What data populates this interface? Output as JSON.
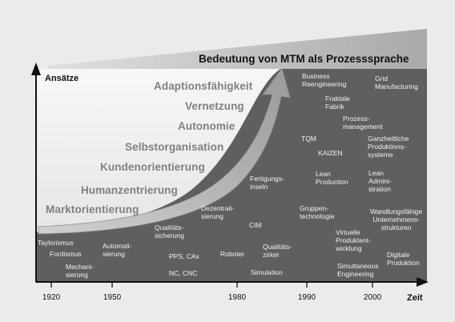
{
  "banner": {
    "title": "Bedeutung von MTM als Prozesssprache"
  },
  "axes": {
    "y_title": "Ansätze",
    "x_title": "Zeit",
    "ticks": [
      "1920",
      "1950",
      "1980",
      "1990",
      "2000"
    ]
  },
  "stages": [
    "Marktorientierung",
    "Humanzentrierung",
    "Kundenorientierung",
    "Selbstorganisation",
    "Autonomie",
    "Vernetzung",
    "Adaptionsfähigkeit"
  ],
  "concepts": {
    "taylorismus": "Taylorismus",
    "fordismus": "Fordismus",
    "mechanisierung": "Mechani-\nsierung",
    "automatisierung": "Automati-\nsierung",
    "qualitaetssicherung": "Qualitäts-\nsicherung",
    "pps_cax": "PPS, CAx",
    "nc_cnc": "NC, CNC",
    "dezentralisierung": "Dezentrali-\nsierung",
    "roboter": "Roboter",
    "fertigungsinseln": "Fertigungs-\ninseln",
    "cim": "CIM",
    "qualitaetszirkel": "Qualitäts-\nzirkel",
    "simulation": "Simulation",
    "business_reengineering": "Business\nReengineering",
    "fraktale_fabrik": "Fraktale\nFabrik",
    "prozessmanagement": "Prozess-\nmanagement",
    "tqm": "TQM",
    "kaizen": "KAIZEN",
    "lean_production": "Lean\nProduction",
    "gruppentechnologie": "Gruppen-\ntechnologie",
    "virtuelle_produktentwicklung": "Virtuelle\nProduktent-\nwicklung",
    "simultaneous_engineering": "Simultaneous\nEngineering",
    "grid_manufacturing": "Grid\nManufacturing",
    "ganzheitliche_produktionssysteme": "Ganzheitliche\nProduktions-\nsysteme",
    "lean_administration": "Lean\nAdmini-\nstration",
    "wandlungsfaehige_unternehmensstrukturen": "Wandlungsfähige\nUnternehmens-\nstrukturen",
    "digitale_produktion": "Digitale\nProduktion"
  },
  "colors": {
    "background": "#ebebeb",
    "dark_area": "#5f5f5f",
    "banner_wedge": "#bdbdbd",
    "arrow": "#b8b8b8",
    "stage_text": "#808080",
    "concept_text": "#f2f2f2"
  }
}
